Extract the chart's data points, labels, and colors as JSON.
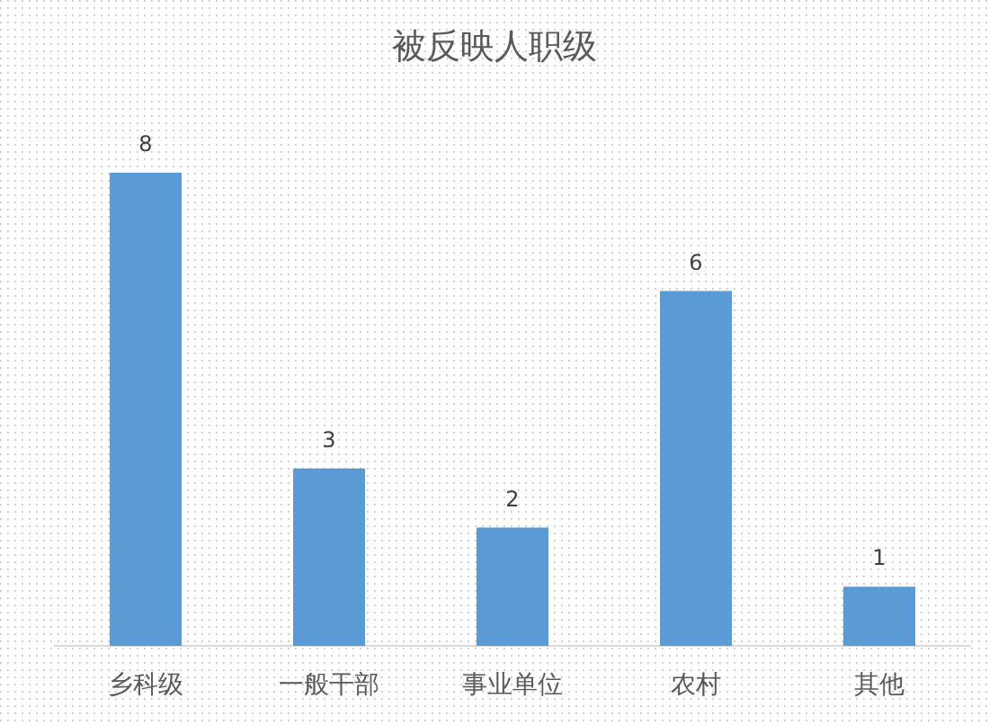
{
  "chart_data": {
    "type": "bar",
    "title": "被反映人职级",
    "categories": [
      "乡科级",
      "一般干部",
      "事业单位",
      "农村",
      "其他"
    ],
    "values": [
      8,
      3,
      2,
      6,
      1
    ],
    "color": "#5b9bd5",
    "data_labels": true
  }
}
